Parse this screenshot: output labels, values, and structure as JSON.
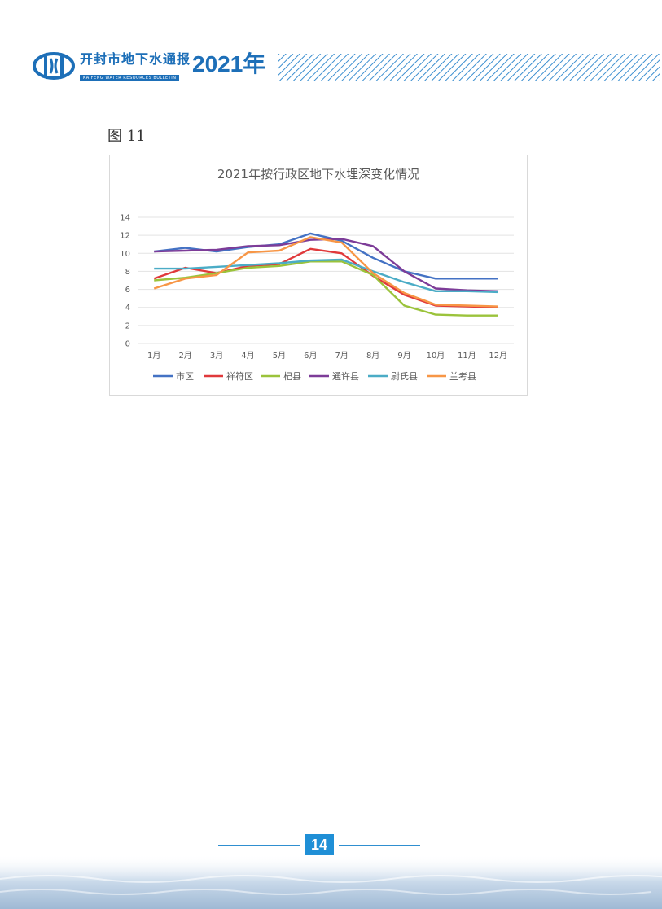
{
  "header": {
    "title_cn": "开封市地下水通报",
    "title_en": "KAIFENG WATER RESOURCES BULLETIN",
    "year": "2021年"
  },
  "figure_label": "图 11",
  "page_number": "14",
  "colors": {
    "brand": "#1d6fb8",
    "page_badge": "#1f8fd6"
  },
  "chart_data": {
    "type": "line",
    "title": "2021年按行政区地下水埋深变化情况",
    "categories": [
      "1月",
      "2月",
      "3月",
      "4月",
      "5月",
      "6月",
      "7月",
      "8月",
      "9月",
      "10月",
      "11月",
      "12月"
    ],
    "ylim": [
      0,
      14
    ],
    "yticks": [
      0,
      2,
      4,
      6,
      8,
      10,
      12,
      14
    ],
    "grid": true,
    "legend": "bottom",
    "series": [
      {
        "name": "市区",
        "color": "#4472c4",
        "values": [
          10.2,
          10.6,
          10.2,
          10.7,
          11.0,
          12.2,
          11.4,
          9.5,
          8.0,
          7.2,
          7.2,
          7.2
        ]
      },
      {
        "name": "祥符区",
        "color": "#e0393b",
        "values": [
          7.2,
          8.4,
          7.8,
          8.6,
          8.8,
          10.5,
          10.0,
          7.5,
          5.4,
          4.2,
          4.1,
          4.0
        ]
      },
      {
        "name": "杞县",
        "color": "#9bc33b",
        "values": [
          7.0,
          7.3,
          7.8,
          8.4,
          8.6,
          9.1,
          9.1,
          7.6,
          4.2,
          3.2,
          3.1,
          3.1
        ]
      },
      {
        "name": "通许县",
        "color": "#7d3c98",
        "values": [
          10.2,
          10.3,
          10.4,
          10.8,
          10.9,
          11.5,
          11.6,
          10.8,
          8.0,
          6.1,
          5.9,
          5.8
        ]
      },
      {
        "name": "尉氏县",
        "color": "#4bacc6",
        "values": [
          8.3,
          8.3,
          8.5,
          8.7,
          8.9,
          9.2,
          9.3,
          8.0,
          6.8,
          5.8,
          5.8,
          5.7
        ]
      },
      {
        "name": "兰考县",
        "color": "#f79646",
        "values": [
          6.1,
          7.2,
          7.6,
          10.1,
          10.3,
          11.8,
          11.2,
          7.8,
          5.6,
          4.3,
          4.2,
          4.1
        ]
      }
    ]
  }
}
